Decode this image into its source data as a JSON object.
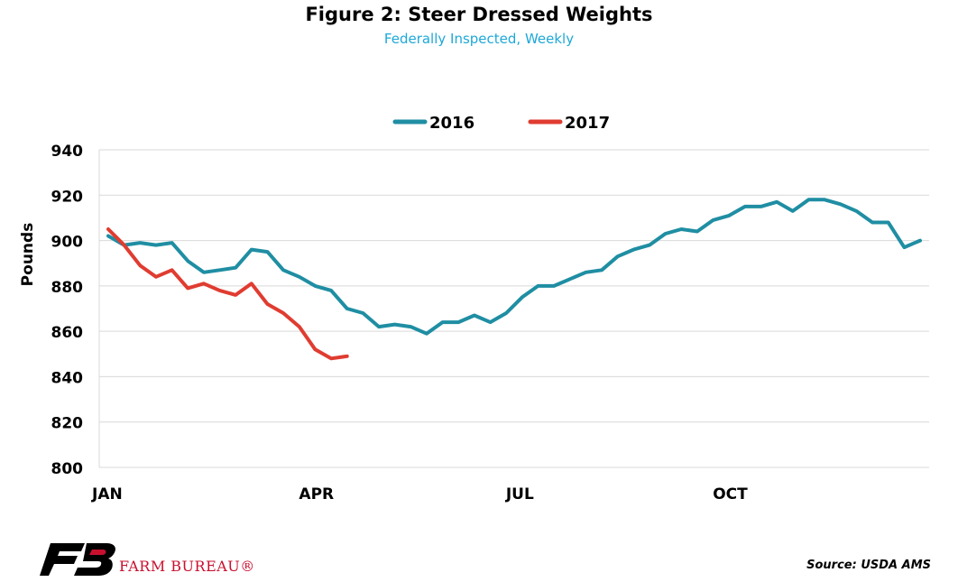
{
  "chart_data": {
    "type": "line",
    "title": "Figure 2: Steer Dressed Weights",
    "subtitle": "Federally Inspected, Weekly",
    "ylabel": "Pounds",
    "xlabel": "",
    "ylim": [
      800,
      940
    ],
    "yticks": [
      800,
      820,
      840,
      860,
      880,
      900,
      920,
      940
    ],
    "xtick_labels": [
      {
        "label": "JAN",
        "week": 1
      },
      {
        "label": "APR",
        "week": 14
      },
      {
        "label": "JUL",
        "week": 27
      },
      {
        "label": "OCT",
        "week": 40
      }
    ],
    "grid": "horizontal",
    "legend_position": "top-center",
    "series": [
      {
        "name": "2016",
        "color": "#1f8ea3",
        "values": [
          902,
          898,
          899,
          898,
          899,
          891,
          886,
          887,
          888,
          896,
          895,
          887,
          884,
          880,
          878,
          870,
          868,
          862,
          863,
          862,
          859,
          864,
          864,
          867,
          864,
          868,
          875,
          880,
          880,
          883,
          886,
          887,
          893,
          896,
          898,
          903,
          905,
          904,
          909,
          911,
          915,
          915,
          917,
          913,
          918,
          918,
          916,
          913,
          908,
          908,
          897,
          900
        ]
      },
      {
        "name": "2017",
        "color": "#e03c31",
        "values": [
          905,
          898,
          889,
          884,
          887,
          879,
          881,
          878,
          876,
          881,
          872,
          868,
          862,
          852,
          848,
          849
        ]
      }
    ]
  },
  "footer": {
    "logo_text": "FARM BUREAU®",
    "source": "Source: USDA AMS"
  }
}
